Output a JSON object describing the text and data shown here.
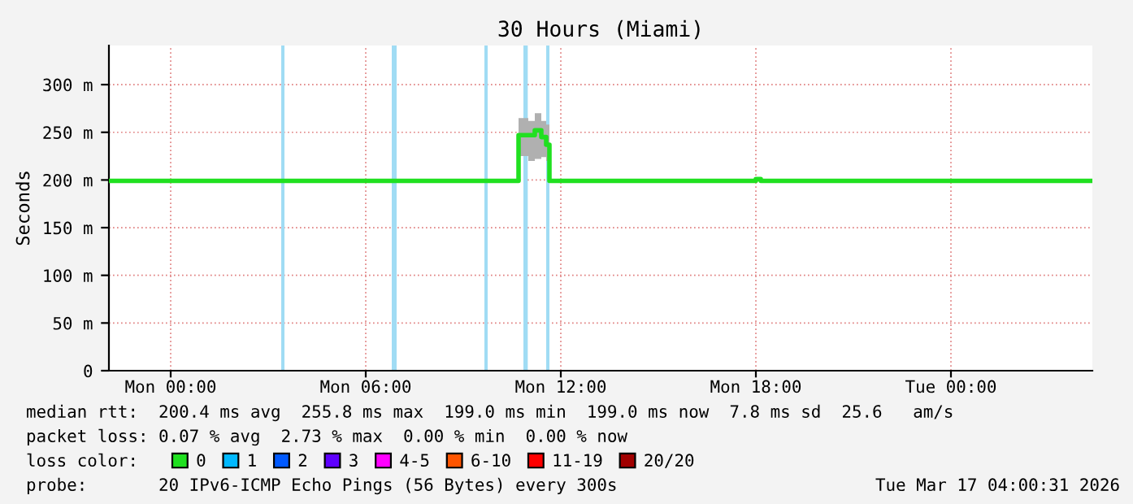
{
  "chart_data": {
    "type": "step",
    "title": "30 Hours (Miami)",
    "ylabel": "Seconds",
    "x": [
      "2026-03-15T22:06",
      "2026-03-16T10:39",
      "2026-03-16T10:42",
      "2026-03-16T11:00",
      "2026-03-16T11:12",
      "2026-03-16T11:24",
      "2026-03-16T11:33",
      "2026-03-16T11:39",
      "2026-03-16T17:54",
      "2026-03-16T18:00",
      "2026-03-16T18:09",
      "2026-03-17T04:21"
    ],
    "series": [
      {
        "name": "0",
        "color": "#20e020",
        "values": [
          199,
          199,
          247,
          247,
          252,
          245,
          237,
          199,
          199,
          201,
          199,
          199
        ],
        "lower": [
          199,
          199,
          225,
          220,
          222,
          224,
          220,
          199,
          199,
          201,
          199,
          199
        ],
        "upper": [
          199,
          204,
          265,
          262,
          270,
          262,
          258,
          199,
          199,
          201,
          199,
          199
        ]
      },
      {
        "name": "1",
        "color": "#00b8ff",
        "values": [
          null,
          null,
          null,
          null,
          null,
          null,
          null,
          null,
          null,
          null,
          null,
          null
        ]
      },
      {
        "name": "2",
        "color": "#0059ff",
        "values": [
          null,
          null,
          null,
          null,
          null,
          null,
          null,
          null,
          null,
          null,
          null,
          null
        ]
      },
      {
        "name": "3",
        "color": "#5e00ff",
        "values": [
          null,
          null,
          null,
          null,
          null,
          null,
          null,
          null,
          null,
          null,
          null,
          null
        ]
      },
      {
        "name": "4-5",
        "color": "#ff00ff",
        "values": [
          null,
          null,
          null,
          null,
          null,
          null,
          null,
          null,
          null,
          null,
          null,
          null
        ]
      },
      {
        "name": "6-10",
        "color": "#ff5500",
        "values": [
          null,
          null,
          null,
          null,
          null,
          null,
          null,
          null,
          null,
          null,
          null,
          null
        ]
      },
      {
        "name": "11-19",
        "color": "#ff0000",
        "values": [
          null,
          null,
          null,
          null,
          null,
          null,
          null,
          null,
          null,
          null,
          null,
          null
        ]
      },
      {
        "name": "20/20",
        "color": "#a10000",
        "values": [
          null,
          null,
          null,
          null,
          null,
          null,
          null,
          null,
          null,
          null,
          null,
          null
        ]
      }
    ],
    "xlim": [
      "2026-03-15T22:06",
      "2026-03-17T04:21"
    ],
    "xticks": [
      {
        "value": "2026-03-16T00:00",
        "label": "Mon 00:00"
      },
      {
        "value": "2026-03-16T06:00",
        "label": "Mon 06:00"
      },
      {
        "value": "2026-03-16T12:00",
        "label": "Mon 12:00"
      },
      {
        "value": "2026-03-16T18:00",
        "label": "Mon 18:00"
      },
      {
        "value": "2026-03-17T00:00",
        "label": "Tue 00:00"
      }
    ],
    "ylim": [
      0,
      341
    ],
    "yticks": [
      0,
      {
        "value": 50,
        "label": "50 m"
      },
      {
        "value": 100,
        "label": "100 m"
      },
      {
        "value": 150,
        "label": "150 m"
      },
      {
        "value": 200,
        "label": "200 m"
      },
      {
        "value": 250,
        "label": "250 m"
      },
      {
        "value": 300,
        "label": "300 m"
      }
    ],
    "grid": true,
    "bands": [
      {
        "axis": "x",
        "from": "2026-03-16T03:24",
        "to": "2026-03-16T03:30",
        "color": "#a0dcf4"
      },
      {
        "axis": "x",
        "from": "2026-03-16T06:48",
        "to": "2026-03-16T06:57",
        "color": "#a0dcf4"
      },
      {
        "axis": "x",
        "from": "2026-03-16T09:39",
        "to": "2026-03-16T09:45",
        "color": "#a0dcf4"
      },
      {
        "axis": "x",
        "from": "2026-03-16T10:51",
        "to": "2026-03-16T10:59",
        "color": "#a0dcf4"
      },
      {
        "axis": "x",
        "from": "2026-03-16T11:33",
        "to": "2026-03-16T11:39",
        "color": "#a0dcf4"
      }
    ],
    "legend_title": "loss color:",
    "legend": "bottom",
    "annotations": [
      "median rtt:  200.4 ms avg  255.8 ms max  199.0 ms min  199.0 ms now  7.8 ms sd  25.6   am/s",
      "packet loss: 0.07 % avg  2.73 % max  0.00 % min  0.00 % now",
      "probe:       20 IPv6-ICMP Echo Pings (56 Bytes) every 300s",
      "Tue Mar 17 04:00:31 2026"
    ]
  }
}
